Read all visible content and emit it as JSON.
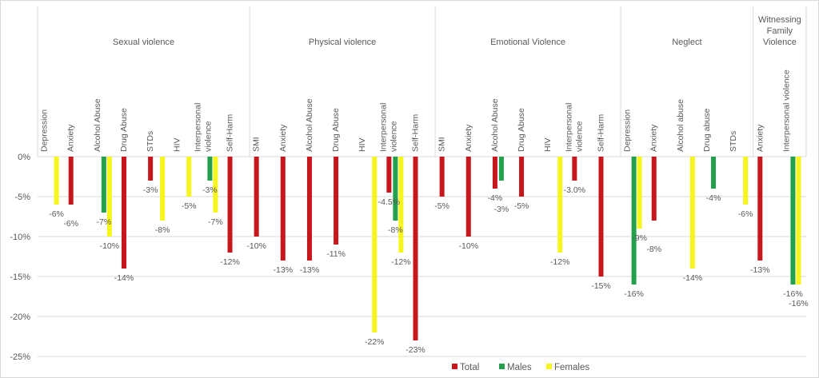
{
  "chart_data": {
    "type": "bar",
    "title": "",
    "xlabel": "",
    "ylabel": "",
    "ylim": [
      -25,
      0
    ],
    "yticks": [
      "0%",
      "-5%",
      "-10%",
      "-15%",
      "-20%",
      "-25%"
    ],
    "grid": true,
    "legend_placement": "bottom",
    "series_names": [
      "Total",
      "Males",
      "Females"
    ],
    "colors": {
      "Total": "#c8161d",
      "Males": "#23a04b",
      "Females": "#f7f51e"
    },
    "groups": [
      {
        "name": "Sexual violence",
        "categories": [
          {
            "label": [
              "Depression"
            ],
            "values": [
              null,
              null,
              -6
            ],
            "labels": [
              null,
              null,
              "-6%"
            ]
          },
          {
            "label": [
              "Anxiety"
            ],
            "values": [
              -6,
              null,
              null
            ],
            "labels": [
              "-6%",
              null,
              null
            ]
          },
          {
            "label": [
              "Alcohol Abuse"
            ],
            "values": [
              null,
              -7,
              -10
            ],
            "labels": [
              null,
              "-7%",
              "-10%"
            ]
          },
          {
            "label": [
              "Drug Abuse"
            ],
            "values": [
              -14,
              null,
              null
            ],
            "labels": [
              "-14%",
              null,
              null
            ]
          },
          {
            "label": [
              "STDs"
            ],
            "values": [
              -3,
              null,
              -8
            ],
            "labels": [
              "-3%",
              null,
              "-8%"
            ]
          },
          {
            "label": [
              "HIV"
            ],
            "values": [
              null,
              null,
              -5
            ],
            "labels": [
              null,
              null,
              "-5%"
            ]
          },
          {
            "label": [
              "Interpersonal",
              "violence"
            ],
            "values": [
              null,
              -3,
              -7
            ],
            "labels": [
              null,
              "-3%",
              "-7%"
            ]
          },
          {
            "label": [
              "Self-Harm"
            ],
            "values": [
              -12,
              null,
              null
            ],
            "labels": [
              "-12%",
              null,
              null
            ]
          }
        ]
      },
      {
        "name": "Physical violence",
        "categories": [
          {
            "label": [
              "SMI"
            ],
            "values": [
              -10,
              null,
              null
            ],
            "labels": [
              "-10%",
              null,
              null
            ]
          },
          {
            "label": [
              "Anxiety"
            ],
            "values": [
              -13,
              null,
              null
            ],
            "labels": [
              "-13%",
              null,
              null
            ]
          },
          {
            "label": [
              "Alcohol Abuse"
            ],
            "values": [
              -13,
              null,
              null
            ],
            "labels": [
              "-13%",
              null,
              null
            ]
          },
          {
            "label": [
              "Drug Abuse"
            ],
            "values": [
              -11,
              null,
              null
            ],
            "labels": [
              "-11%",
              null,
              null
            ]
          },
          {
            "label": [
              "HIV"
            ],
            "values": [
              null,
              null,
              -22
            ],
            "labels": [
              null,
              null,
              "-22%"
            ]
          },
          {
            "label": [
              "Interpersonal",
              "violence"
            ],
            "values": [
              -4.5,
              -8,
              -12
            ],
            "labels": [
              "-4.5%",
              "-8%",
              "-12%"
            ]
          },
          {
            "label": [
              "Self-Harm"
            ],
            "values": [
              -23,
              null,
              null
            ],
            "labels": [
              "-23%",
              null,
              null
            ]
          }
        ]
      },
      {
        "name": "Emotional Violence",
        "categories": [
          {
            "label": [
              "SMI"
            ],
            "values": [
              -5,
              null,
              null
            ],
            "labels": [
              "-5%",
              null,
              null
            ]
          },
          {
            "label": [
              "Anxiety"
            ],
            "values": [
              -10,
              null,
              null
            ],
            "labels": [
              "-10%",
              null,
              null
            ]
          },
          {
            "label": [
              "Alcohol Abuse"
            ],
            "values": [
              -4,
              -3,
              null
            ],
            "labels": [
              "-4%",
              "-3%",
              null
            ]
          },
          {
            "label": [
              "Drug Abuse"
            ],
            "values": [
              -5,
              null,
              null
            ],
            "labels": [
              "-5%",
              null,
              null
            ]
          },
          {
            "label": [
              "HIV"
            ],
            "values": [
              null,
              null,
              -12
            ],
            "labels": [
              null,
              null,
              "-12%"
            ]
          },
          {
            "label": [
              "Interpersonal",
              "violence"
            ],
            "values": [
              -3.0,
              null,
              null
            ],
            "labels": [
              "-3.0%",
              null,
              null
            ]
          },
          {
            "label": [
              "Self-Harm"
            ],
            "values": [
              -15,
              null,
              null
            ],
            "labels": [
              "-15%",
              null,
              null
            ]
          }
        ]
      },
      {
        "name": "Neglect",
        "categories": [
          {
            "label": [
              "Depression"
            ],
            "values": [
              null,
              -16,
              -9
            ],
            "labels": [
              null,
              "-16%",
              "-9%"
            ]
          },
          {
            "label": [
              "Anxiety"
            ],
            "values": [
              -8,
              null,
              null
            ],
            "labels": [
              "-8%",
              null,
              null
            ]
          },
          {
            "label": [
              "Alcohol abuse"
            ],
            "values": [
              null,
              null,
              -14
            ],
            "labels": [
              null,
              null,
              "-14%"
            ]
          },
          {
            "label": [
              "Drug abuse"
            ],
            "values": [
              null,
              -4,
              null
            ],
            "labels": [
              null,
              "-4%",
              null
            ]
          },
          {
            "label": [
              "STDs"
            ],
            "values": [
              null,
              null,
              -6
            ],
            "labels": [
              null,
              null,
              "-6%"
            ]
          }
        ]
      },
      {
        "name": "Witnessing Family Violence",
        "name_lines": [
          "Witnessing",
          "Family",
          "Violence"
        ],
        "categories": [
          {
            "label": [
              "Anxiety"
            ],
            "values": [
              -13,
              null,
              null
            ],
            "labels": [
              "-13%",
              null,
              null
            ]
          },
          {
            "label": [
              "Interpersonal violence"
            ],
            "values": [
              null,
              -16,
              -16
            ],
            "labels": [
              null,
              "-16%",
              "-16%"
            ]
          }
        ]
      }
    ]
  }
}
